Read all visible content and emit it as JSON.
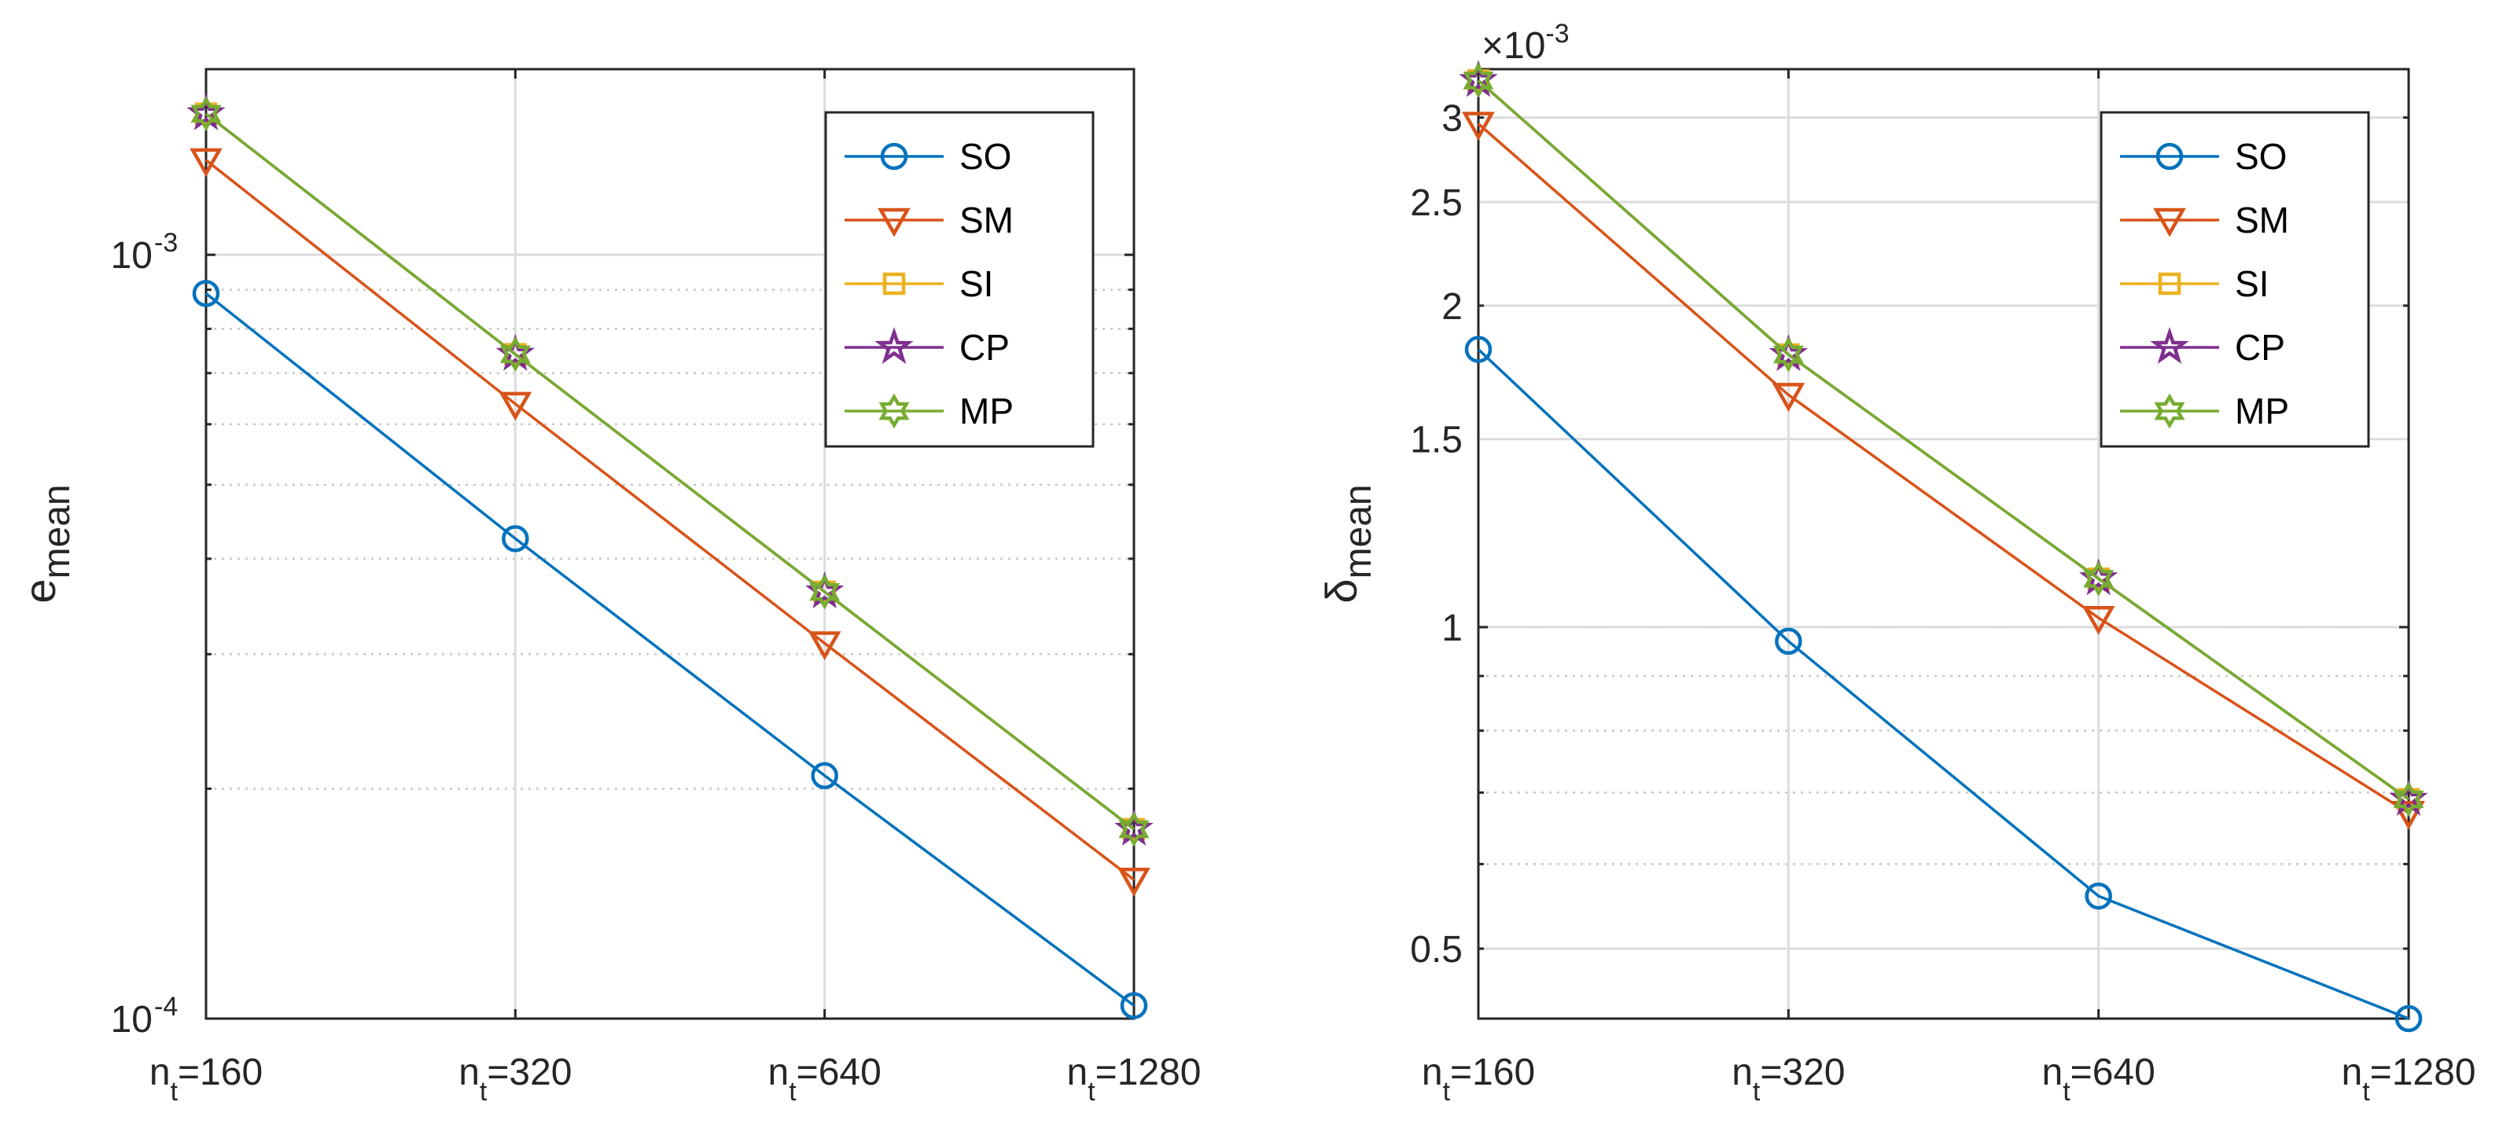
{
  "colors": {
    "SO": "#0072BD",
    "SM": "#D95319",
    "SI": "#EDB120",
    "CP": "#7E2F8E",
    "MP": "#77AC30",
    "axis": "#262626",
    "grid": "#DCDCDC",
    "minor_grid": "#C8C8C8"
  },
  "chart_data": [
    {
      "type": "line",
      "yscale": "log",
      "ylim": [
        0.0001,
        0.00175
      ],
      "ylabel": "e",
      "ylabel_sub": "mean",
      "categories": [
        {
          "base": "n",
          "sub": "t",
          "rest": "=160"
        },
        {
          "base": "n",
          "sub": "t",
          "rest": "=320"
        },
        {
          "base": "n",
          "sub": "t",
          "rest": "=640"
        },
        {
          "base": "n",
          "sub": "t",
          "rest": "=1280"
        }
      ],
      "yticks": [
        {
          "value": 0.0001,
          "base": "10",
          "exp": "-4"
        },
        {
          "value": 0.001,
          "base": "10",
          "exp": "-3"
        }
      ],
      "grid": true,
      "legend_position": "top-right",
      "series": [
        {
          "name": "SO",
          "marker": "circle",
          "values": [
            0.00089,
            0.000425,
            0.000208,
            0.000104
          ]
        },
        {
          "name": "SM",
          "marker": "triangle-down",
          "values": [
            0.00133,
            0.000638,
            0.00031,
            0.000152
          ]
        },
        {
          "name": "SI",
          "marker": "square",
          "values": [
            0.00153,
            0.000741,
            0.000362,
            0.000177
          ]
        },
        {
          "name": "CP",
          "marker": "pentagram",
          "values": [
            0.00153,
            0.000741,
            0.000362,
            0.000177
          ]
        },
        {
          "name": "MP",
          "marker": "hexagram",
          "values": [
            0.00153,
            0.000741,
            0.000362,
            0.000177
          ]
        }
      ]
    },
    {
      "type": "line",
      "yscale": "log",
      "ylim": [
        0.00043,
        0.00333
      ],
      "ylabel": "δ",
      "ylabel_sub": "mean",
      "multiplier": {
        "base": "×10",
        "exp": "-3"
      },
      "categories": [
        {
          "base": "n",
          "sub": "t",
          "rest": "=160"
        },
        {
          "base": "n",
          "sub": "t",
          "rest": "=320"
        },
        {
          "base": "n",
          "sub": "t",
          "rest": "=640"
        },
        {
          "base": "n",
          "sub": "t",
          "rest": "=1280"
        }
      ],
      "yticks": [
        {
          "value": 0.0005,
          "label": "0.5"
        },
        {
          "value": 0.001,
          "label": "1"
        },
        {
          "value": 0.0015,
          "label": "1.5"
        },
        {
          "value": 0.002,
          "label": "2"
        },
        {
          "value": 0.0025,
          "label": "2.5"
        },
        {
          "value": 0.003,
          "label": "3"
        }
      ],
      "grid": true,
      "legend_position": "top-right",
      "series": [
        {
          "name": "SO",
          "marker": "circle",
          "values": [
            0.00182,
            0.00097,
            0.00056,
            0.00043
          ]
        },
        {
          "name": "SM",
          "marker": "triangle-down",
          "values": [
            0.00296,
            0.00165,
            0.00102,
            0.00067
          ]
        },
        {
          "name": "SI",
          "marker": "square",
          "values": [
            0.00325,
            0.0018,
            0.00111,
            0.00069
          ]
        },
        {
          "name": "CP",
          "marker": "pentagram",
          "values": [
            0.00325,
            0.0018,
            0.00111,
            0.00069
          ]
        },
        {
          "name": "MP",
          "marker": "hexagram",
          "values": [
            0.00325,
            0.0018,
            0.00111,
            0.00069
          ]
        }
      ]
    }
  ]
}
